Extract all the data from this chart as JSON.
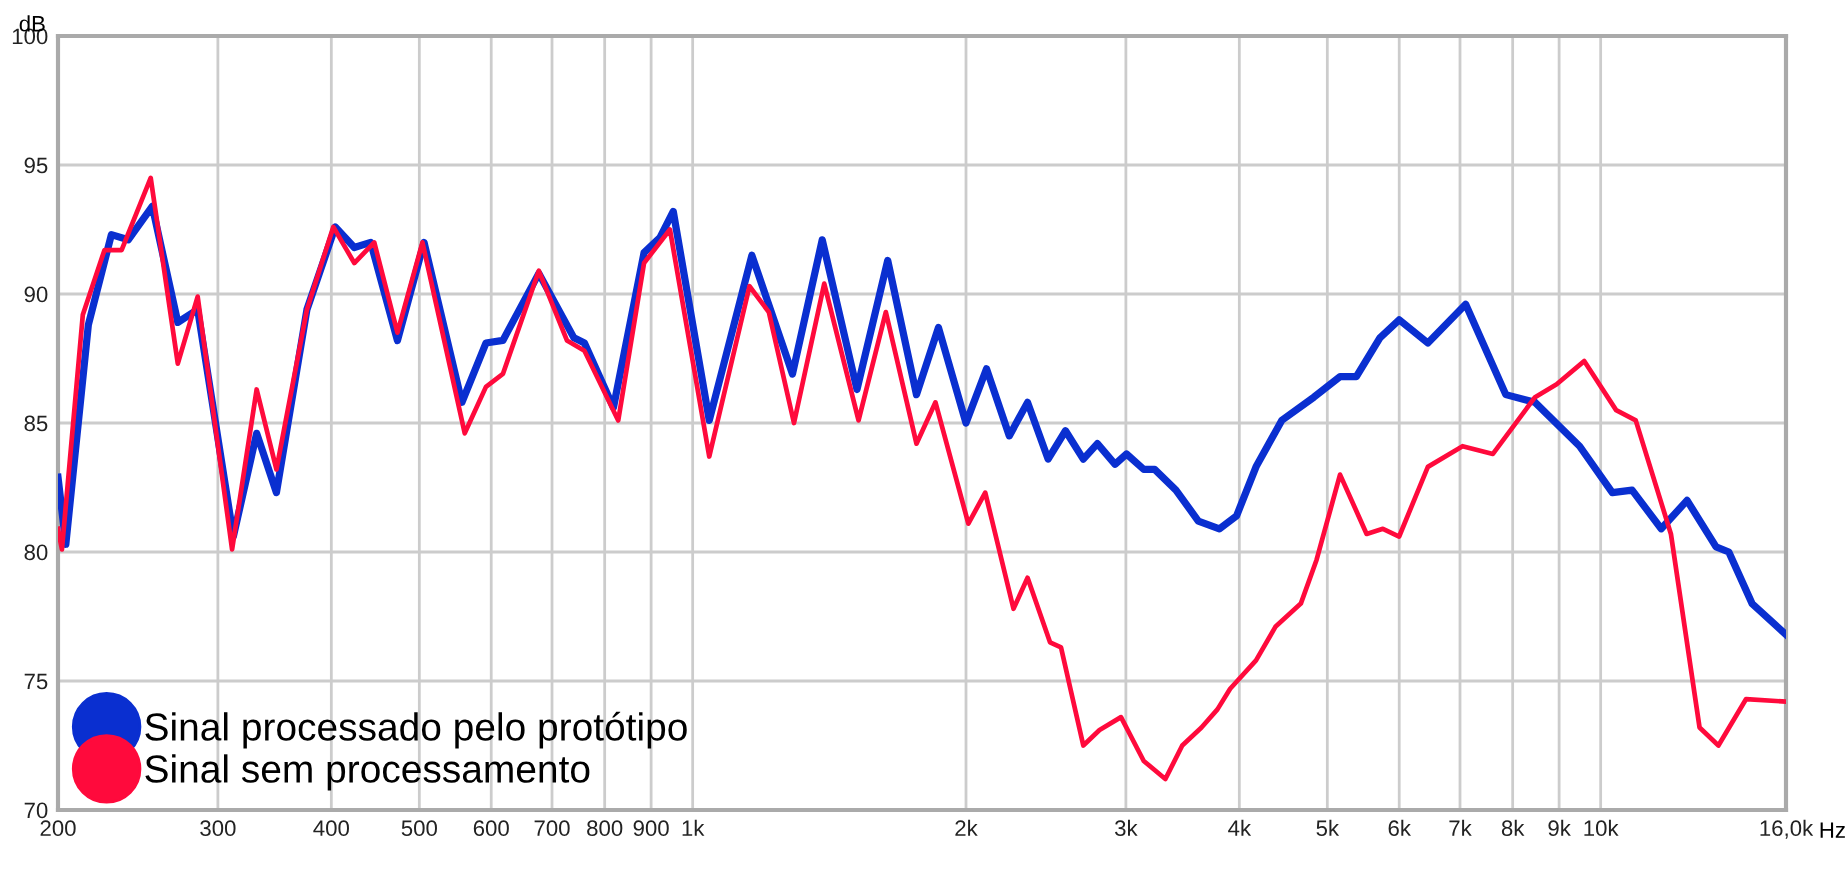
{
  "chart_data": {
    "type": "line",
    "ylabel": "dB",
    "xlabel": "Hz",
    "log": "x",
    "grid": true,
    "legend": "bottom left",
    "marker": "none",
    "line_style": "solid",
    "xlim": [
      200,
      16000
    ],
    "ylim": [
      70,
      100
    ],
    "xticks": [
      200,
      300,
      400,
      500,
      600,
      700,
      800,
      900,
      {
        "value": 1000,
        "label": "1k"
      },
      {
        "value": 2000,
        "label": "2k"
      },
      {
        "value": 3000,
        "label": "3k"
      },
      {
        "value": 4000,
        "label": "4k"
      },
      {
        "value": 5000,
        "label": "5k"
      },
      {
        "value": 6000,
        "label": "6k"
      },
      {
        "value": 7000,
        "label": "7k"
      },
      {
        "value": 8000,
        "label": "8k"
      },
      {
        "value": 9000,
        "label": "9k"
      },
      {
        "value": 10000,
        "label": "10k"
      },
      {
        "value": 16000,
        "label": "16,0k"
      }
    ],
    "yticks": [
      70,
      75,
      80,
      85,
      90,
      95,
      100
    ],
    "series": [
      {
        "name": "Sinal processado pelo protótipo",
        "color": "#0a2fd0",
        "x": [
          200,
          204,
          216,
          229,
          239,
          254,
          271,
          285,
          312,
          331,
          348,
          376,
          404,
          424,
          442,
          473,
          506,
          557,
          592,
          618,
          677,
          740,
          760,
          818,
          884,
          921,
          952,
          1043,
          1162,
          1288,
          1389,
          1517,
          1640,
          1764,
          1865,
          2000,
          2107,
          2232,
          2338,
          2463,
          2574,
          2693,
          2791,
          2919,
          3005,
          3139,
          3227,
          3406,
          3605,
          3803,
          3972,
          4173,
          4454,
          4832,
          5164,
          5382,
          5713,
          5999,
          6452,
          7101,
          7862,
          8467,
          9481,
          10300,
          10830,
          11660,
          12450,
          13400,
          13840,
          14680,
          16000
        ],
        "values": [
          82.9,
          80.3,
          88.8,
          92.3,
          92.1,
          93.4,
          88.9,
          89.4,
          80.6,
          84.6,
          82.3,
          89.4,
          92.6,
          91.8,
          92.0,
          88.2,
          92.0,
          85.8,
          88.1,
          88.2,
          90.8,
          88.3,
          88.1,
          85.6,
          91.6,
          92.2,
          93.2,
          85.1,
          91.5,
          86.9,
          92.1,
          86.3,
          91.3,
          86.1,
          88.7,
          85.0,
          87.1,
          84.5,
          85.8,
          83.6,
          84.7,
          83.6,
          84.2,
          83.4,
          83.8,
          83.2,
          83.2,
          82.4,
          81.2,
          80.9,
          81.4,
          83.3,
          85.1,
          86.0,
          86.8,
          86.8,
          88.3,
          89.0,
          88.1,
          89.6,
          86.1,
          85.8,
          84.1,
          82.3,
          82.4,
          80.9,
          82.0,
          80.2,
          80.0,
          78.0,
          76.8
        ]
      },
      {
        "name": "Sinal sem processamento",
        "color": "#ff0a3c",
        "x": [
          200,
          202,
          213,
          225,
          235,
          253,
          271,
          285,
          311,
          331,
          348,
          376,
          402,
          424,
          446,
          473,
          504,
          561,
          592,
          618,
          677,
          727,
          760,
          828,
          884,
          944,
          1043,
          1155,
          1213,
          1293,
          1396,
          1523,
          1632,
          1764,
          1851,
          2012,
          2100,
          2256,
          2338,
          2475,
          2545,
          2693,
          2806,
          2963,
          3139,
          3316,
          3461,
          3634,
          3784,
          3908,
          4173,
          4383,
          4675,
          4866,
          5164,
          5524,
          5757,
          5999,
          6452,
          7045,
          7609,
          8467,
          8944,
          9591,
          10400,
          10930,
          11950,
          12850,
          13480,
          14460,
          16000
        ],
        "values": [
          80.9,
          80.1,
          89.2,
          91.7,
          91.7,
          94.5,
          87.3,
          89.9,
          80.1,
          86.3,
          83.2,
          89.4,
          92.6,
          91.2,
          92.0,
          88.5,
          92.0,
          84.6,
          86.4,
          86.9,
          90.9,
          88.2,
          87.8,
          85.1,
          91.2,
          92.5,
          83.7,
          90.3,
          89.3,
          85.0,
          90.4,
          85.1,
          89.3,
          84.2,
          85.8,
          81.1,
          82.3,
          77.8,
          79.0,
          76.5,
          76.3,
          72.5,
          73.1,
          73.6,
          71.9,
          71.2,
          72.5,
          73.2,
          73.9,
          74.7,
          75.8,
          77.1,
          78.0,
          79.7,
          83.0,
          80.7,
          80.9,
          80.6,
          83.3,
          84.1,
          83.8,
          86.0,
          86.5,
          87.4,
          85.5,
          85.1,
          80.7,
          73.2,
          72.5,
          74.3,
          74.2
        ]
      }
    ]
  }
}
